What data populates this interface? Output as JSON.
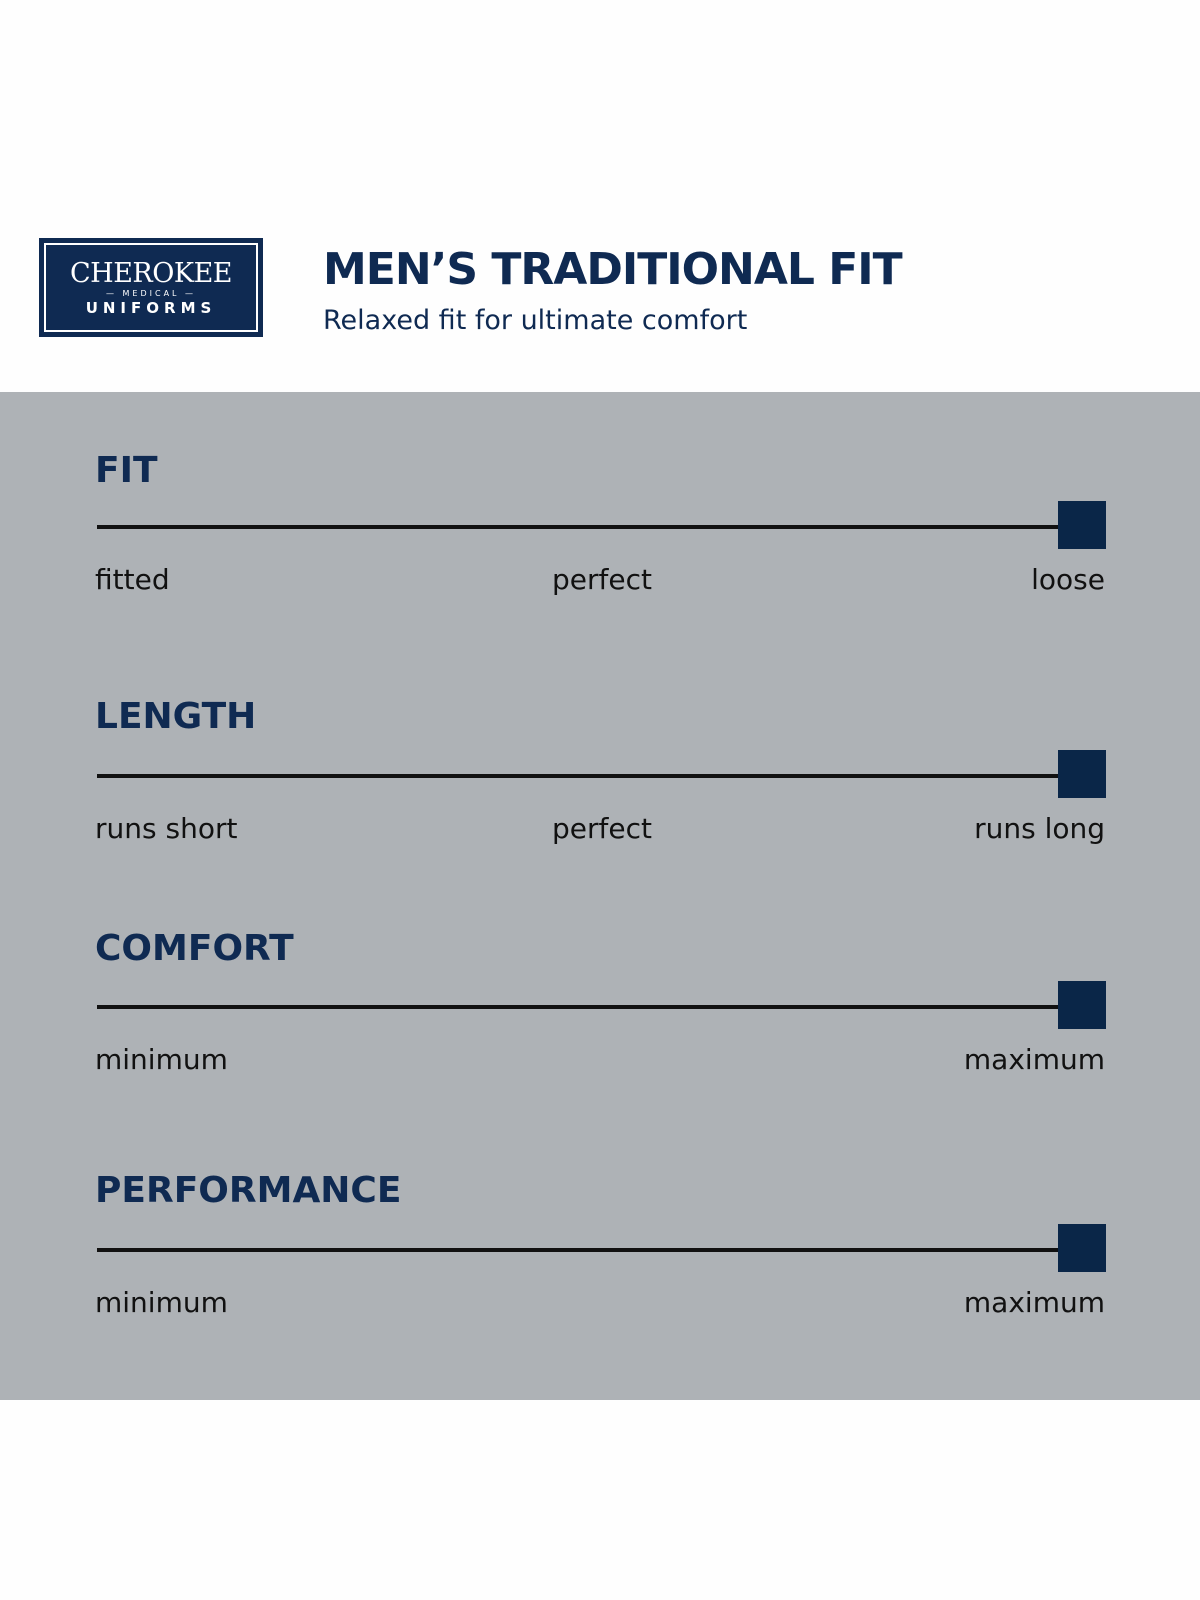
{
  "logo": {
    "brand": "CHEROKEE",
    "sub": "MEDICAL",
    "sub2": "UNIFORMS"
  },
  "header": {
    "title": "MEN’S TRADITIONAL FIT",
    "subtitle": "Relaxed fit for ultimate comfort"
  },
  "colors": {
    "navy": "#0f2a52",
    "band": "#aeb2b6",
    "marker": "#0a2648"
  },
  "metrics": [
    {
      "name": "FIT",
      "labels": [
        "fitted",
        "perfect",
        "loose"
      ],
      "value": 1.0
    },
    {
      "name": "LENGTH",
      "labels": [
        "runs short",
        "perfect",
        "runs long"
      ],
      "value": 1.0
    },
    {
      "name": "COMFORT",
      "labels": [
        "minimum",
        "maximum"
      ],
      "value": 1.0
    },
    {
      "name": "PERFORMANCE",
      "labels": [
        "minimum",
        "maximum"
      ],
      "value": 1.0
    }
  ]
}
